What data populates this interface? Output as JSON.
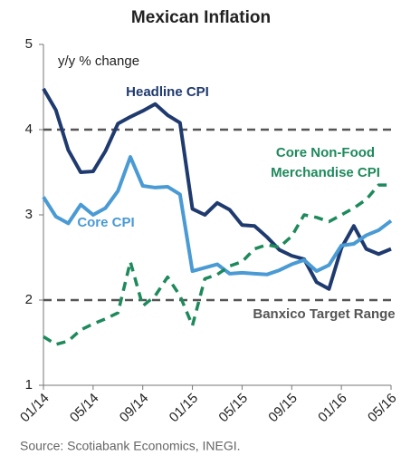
{
  "chart_data": {
    "type": "line",
    "title": "Mexican Inflation",
    "y_label": "y/y % change",
    "source": "Source: Scotiabank Economics, INEGI.",
    "categories": [
      "01/14",
      null,
      null,
      null,
      "05/14",
      null,
      null,
      null,
      "09/14",
      null,
      null,
      null,
      "01/15",
      null,
      null,
      null,
      "05/15",
      null,
      null,
      null,
      "09/15",
      null,
      null,
      null,
      "01/16",
      null,
      null,
      null,
      "05/16"
    ],
    "series": [
      {
        "name": "Headline CPI",
        "color": "#1f3a6e",
        "dash": false,
        "values": [
          4.48,
          4.23,
          3.76,
          3.5,
          3.51,
          3.75,
          4.07,
          4.15,
          4.22,
          4.3,
          4.17,
          4.08,
          3.07,
          3.0,
          3.14,
          3.06,
          2.88,
          2.87,
          2.74,
          2.59,
          2.52,
          2.48,
          2.21,
          2.13,
          2.61,
          2.87,
          2.6,
          2.54,
          2.6
        ]
      },
      {
        "name": "Core CPI",
        "color": "#4a9ad4",
        "dash": false,
        "values": [
          3.21,
          2.98,
          2.9,
          3.12,
          3.0,
          3.08,
          3.28,
          3.68,
          3.34,
          3.32,
          3.33,
          3.24,
          2.34,
          2.38,
          2.42,
          2.31,
          2.32,
          2.31,
          2.3,
          2.35,
          2.42,
          2.47,
          2.34,
          2.41,
          2.64,
          2.66,
          2.76,
          2.82,
          2.93
        ]
      },
      {
        "name": "Core Non-Food Merchandise CPI",
        "color": "#1e8a5c",
        "dash": true,
        "values": [
          1.57,
          1.48,
          1.52,
          1.65,
          1.72,
          1.78,
          1.85,
          2.45,
          1.93,
          2.05,
          2.27,
          2.05,
          1.7,
          2.25,
          2.3,
          2.4,
          2.45,
          2.6,
          2.65,
          2.62,
          2.75,
          3.0,
          2.97,
          2.92,
          3.0,
          3.08,
          3.18,
          3.35,
          3.35
        ]
      }
    ],
    "target_range": {
      "label": "Banxico Target Range",
      "values": [
        2,
        4
      ],
      "color": "#555555"
    },
    "ylim": [
      1,
      5
    ],
    "yticks": [
      1,
      2,
      3,
      4,
      5
    ]
  }
}
